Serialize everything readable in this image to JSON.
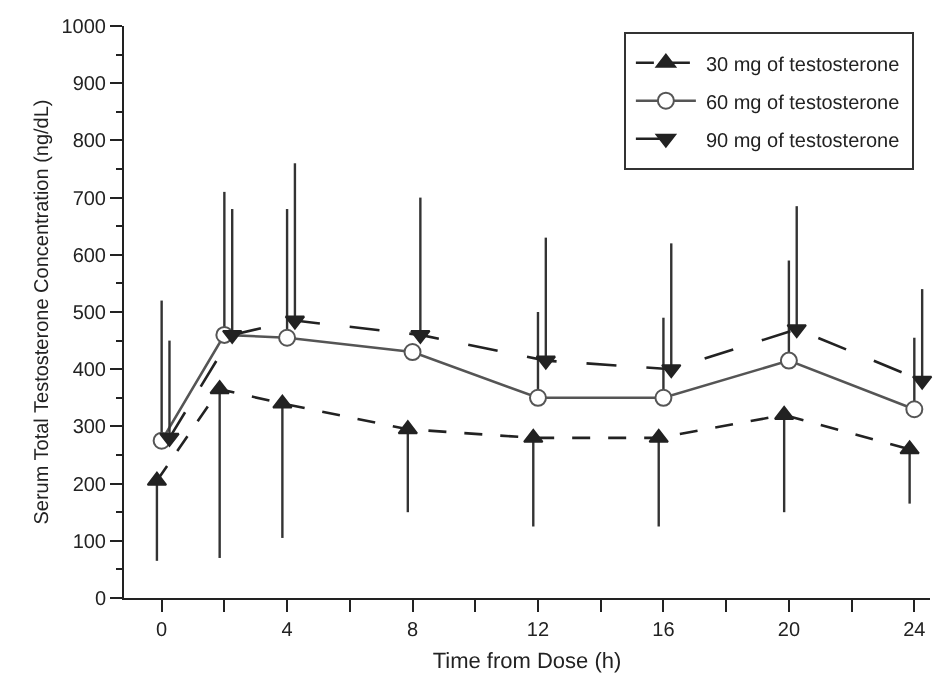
{
  "chart_data": {
    "type": "line",
    "xlabel": "Time from Dose (h)",
    "ylabel": "Serum Total Testosterone Concentration (ng/dL)",
    "x": [
      0,
      2,
      4,
      8,
      12,
      16,
      20,
      24
    ],
    "xlim": [
      -1.2,
      24.5
    ],
    "xticks": [
      0,
      {
        "value": 2,
        "label": null
      },
      4,
      {
        "value": 6,
        "label": null
      },
      8,
      {
        "value": 10,
        "label": null
      },
      12,
      {
        "value": 14,
        "label": null
      },
      16,
      {
        "value": 18,
        "label": null
      },
      20,
      {
        "value": 22,
        "label": null
      },
      24
    ],
    "ylim": [
      0,
      1000
    ],
    "yticks": [
      0,
      100,
      200,
      300,
      400,
      500,
      600,
      700,
      800,
      900,
      1000
    ],
    "grid": false,
    "legend": "top right",
    "series": [
      {
        "name": "30 mg of testosterone",
        "color": "#222222",
        "x": [
          -0.15,
          1.85,
          3.85,
          7.85,
          11.85,
          15.85,
          19.85,
          23.85
        ],
        "marker": "triangle",
        "line_style": "dashed",
        "values": [
          205,
          365,
          340,
          295,
          280,
          280,
          320,
          260
        ],
        "errors": [
          [
            65,
            205
          ],
          [
            70,
            365
          ],
          [
            105,
            340
          ],
          [
            150,
            295
          ],
          [
            125,
            280
          ],
          [
            125,
            280
          ],
          [
            150,
            320
          ],
          [
            165,
            260
          ]
        ]
      },
      {
        "name": "60 mg of testosterone",
        "color": "#555555",
        "marker": "circle",
        "line_style": "solid",
        "values": [
          275,
          460,
          455,
          430,
          350,
          350,
          415,
          330
        ],
        "errors": [
          [
            275,
            520
          ],
          [
            460,
            710
          ],
          [
            455,
            680
          ],
          null,
          [
            350,
            500
          ],
          [
            350,
            490
          ],
          [
            415,
            590
          ],
          [
            330,
            455
          ]
        ]
      },
      {
        "name": "90 mg of testosterone",
        "color": "#222222",
        "x": [
          0.25,
          2.25,
          4.25,
          8.25,
          12.25,
          16.25,
          20.25,
          24.25
        ],
        "marker": "triangle-down",
        "line_style": "longdash",
        "values": [
          280,
          460,
          485,
          460,
          415,
          400,
          470,
          380
        ],
        "errors": [
          [
            280,
            450
          ],
          [
            460,
            680
          ],
          [
            485,
            760
          ],
          [
            460,
            700
          ],
          [
            415,
            630
          ],
          [
            400,
            620
          ],
          [
            470,
            685
          ],
          [
            380,
            540
          ]
        ]
      }
    ]
  }
}
